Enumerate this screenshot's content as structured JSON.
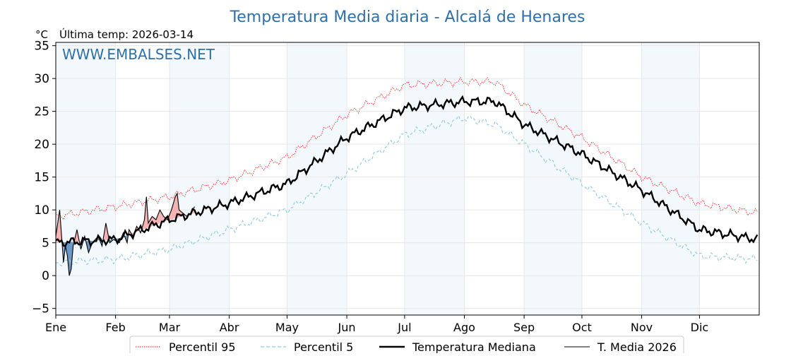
{
  "chart_data": {
    "type": "line",
    "title": "Temperatura Media diaria - Alcalá de Henares",
    "unit_label": "°C",
    "subtitle": "Última temp: 2026-03-14",
    "watermark": "WWW.EMBALSES.NET",
    "ylabel": "°C",
    "xlabel": "",
    "ylim": [
      -6,
      35.5
    ],
    "xlim": [
      0,
      365
    ],
    "grid": true,
    "legend_position": "bottom",
    "y_ticks": [
      -5,
      0,
      5,
      10,
      15,
      20,
      25,
      30,
      35
    ],
    "y_tick_labels": [
      "−5",
      "0",
      "5",
      "10",
      "15",
      "20",
      "25",
      "30",
      "35"
    ],
    "month_labels": [
      "Ene",
      "Feb",
      "Mar",
      "Abr",
      "May",
      "Jun",
      "Jul",
      "Ago",
      "Sep",
      "Oct",
      "Nov",
      "Dic"
    ],
    "month_start_days": [
      0,
      31,
      59,
      90,
      120,
      151,
      181,
      212,
      243,
      273,
      304,
      334
    ],
    "shaded_month_spans": [
      [
        0,
        31
      ],
      [
        59,
        90
      ],
      [
        120,
        151
      ],
      [
        181,
        212
      ],
      [
        243,
        273
      ],
      [
        304,
        334
      ]
    ],
    "series": [
      {
        "name": "Percentil 95",
        "color": "#ff0000",
        "style": "dotted",
        "points": [
          [
            0,
            9
          ],
          [
            31,
            10.5
          ],
          [
            59,
            12
          ],
          [
            90,
            14.5
          ],
          [
            120,
            18
          ],
          [
            151,
            24.5
          ],
          [
            181,
            29
          ],
          [
            212,
            29.5
          ],
          [
            228,
            29.5
          ],
          [
            243,
            26
          ],
          [
            273,
            21
          ],
          [
            304,
            15
          ],
          [
            334,
            11
          ],
          [
            364,
            9.5
          ]
        ]
      },
      {
        "name": "Percentil 5",
        "color": "#8ec9dd",
        "style": "dashed",
        "points": [
          [
            0,
            2
          ],
          [
            31,
            2.5
          ],
          [
            59,
            4
          ],
          [
            90,
            7
          ],
          [
            120,
            10
          ],
          [
            151,
            15.5
          ],
          [
            181,
            21.5
          ],
          [
            212,
            24
          ],
          [
            228,
            23
          ],
          [
            243,
            20
          ],
          [
            273,
            14
          ],
          [
            304,
            8
          ],
          [
            334,
            3
          ],
          [
            364,
            2.5
          ]
        ]
      },
      {
        "name": "Temperatura Mediana",
        "color": "#000000",
        "style": "thick",
        "points": [
          [
            0,
            5
          ],
          [
            31,
            5.5
          ],
          [
            59,
            8.5
          ],
          [
            90,
            11
          ],
          [
            120,
            14
          ],
          [
            151,
            21
          ],
          [
            181,
            25.5
          ],
          [
            212,
            26.5
          ],
          [
            228,
            26.5
          ],
          [
            243,
            23
          ],
          [
            273,
            18.5
          ],
          [
            304,
            13
          ],
          [
            334,
            7
          ],
          [
            364,
            5.5
          ]
        ]
      },
      {
        "name": "T. Media 2026",
        "color": "#000000",
        "style": "thin",
        "points": [
          [
            0,
            6
          ],
          [
            2,
            10
          ],
          [
            4,
            2
          ],
          [
            5,
            4.5
          ],
          [
            6,
            3
          ],
          [
            7,
            0
          ],
          [
            8,
            1
          ],
          [
            9,
            4.5
          ],
          [
            11,
            7
          ],
          [
            13,
            4
          ],
          [
            15,
            6
          ],
          [
            17,
            3.5
          ],
          [
            19,
            5
          ],
          [
            22,
            6
          ],
          [
            24,
            4.5
          ],
          [
            26,
            8
          ],
          [
            28,
            5
          ],
          [
            30,
            5.5
          ],
          [
            33,
            5
          ],
          [
            35,
            6.5
          ],
          [
            37,
            5
          ],
          [
            38,
            7
          ],
          [
            40,
            6
          ],
          [
            42,
            7.5
          ],
          [
            44,
            6.5
          ],
          [
            46,
            8.5
          ],
          [
            47,
            12
          ],
          [
            48,
            8
          ],
          [
            50,
            9
          ],
          [
            52,
            8.5
          ],
          [
            54,
            10
          ],
          [
            56,
            9
          ],
          [
            58,
            8.5
          ],
          [
            60,
            10
          ],
          [
            62,
            12
          ],
          [
            63,
            12.5
          ],
          [
            64,
            10
          ],
          [
            66,
            9.5
          ],
          [
            68,
            9
          ],
          [
            70,
            9.5
          ],
          [
            72,
            10.5
          ]
        ]
      }
    ],
    "legend": [
      "Percentil 95",
      "Percentil 5",
      "Temperatura Mediana",
      "T. Media 2026"
    ],
    "fill_above_median_color": "#f4a0a0",
    "fill_below_median_color": "#4f84b8"
  }
}
